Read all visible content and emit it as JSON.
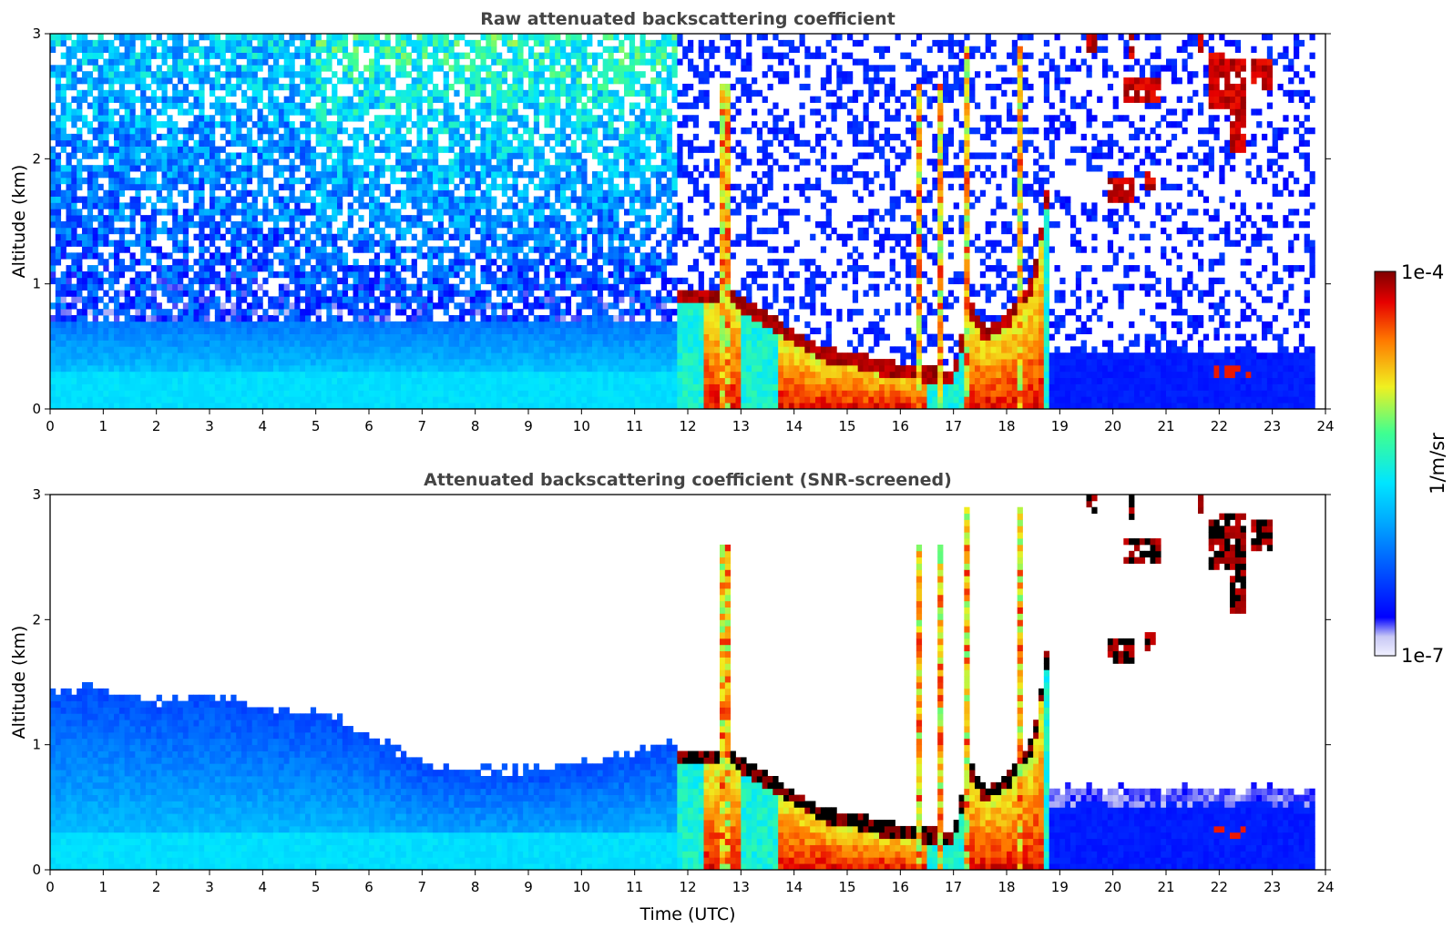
{
  "chart_data": [
    {
      "type": "heatmap",
      "title": "Raw attenuated backscattering coefficient",
      "xlabel": "",
      "ylabel": "Altitude (km)",
      "xlim": [
        0,
        24
      ],
      "ylim": [
        0,
        3
      ],
      "x_ticks": [
        "0",
        "1",
        "2",
        "3",
        "4",
        "5",
        "6",
        "7",
        "8",
        "9",
        "10",
        "11",
        "12",
        "13",
        "14",
        "15",
        "16",
        "17",
        "18",
        "19",
        "20",
        "21",
        "22",
        "23",
        "24"
      ],
      "y_ticks": [
        "0",
        "1",
        "2",
        "3"
      ],
      "screening": "none",
      "data_end_time": 23.8,
      "features": [
        {
          "kind": "boundary-layer aerosol",
          "time_range": [
            0,
            11.8
          ],
          "top_km": 0.6,
          "level": "low"
        },
        {
          "kind": "cloud layer",
          "time_range": [
            11.8,
            18.8
          ],
          "base_km": [
            0.9,
            0.3,
            0.8,
            1.8
          ],
          "level": "high"
        },
        {
          "kind": "clear sky, low aerosol",
          "time_range": [
            18.8,
            23.8
          ],
          "top_km": 0.45,
          "level": "very low"
        },
        {
          "kind": "elevated cloud patches",
          "time_range": [
            19.5,
            23.0
          ],
          "altitude_km": [
            1.6,
            3.0
          ],
          "level": "high"
        }
      ]
    },
    {
      "type": "heatmap",
      "title": "Attenuated backscattering coefficient (SNR-screened)",
      "xlabel": "Time (UTC)",
      "ylabel": "Altitude (km)",
      "xlim": [
        0,
        24
      ],
      "ylim": [
        0,
        3
      ],
      "x_ticks": [
        "0",
        "1",
        "2",
        "3",
        "4",
        "5",
        "6",
        "7",
        "8",
        "9",
        "10",
        "11",
        "12",
        "13",
        "14",
        "15",
        "16",
        "17",
        "18",
        "19",
        "20",
        "21",
        "22",
        "23",
        "24"
      ],
      "y_ticks": [
        "0",
        "1",
        "2",
        "3"
      ],
      "screening": "SNR",
      "data_end_time": 23.8,
      "features": [
        {
          "kind": "boundary-layer aerosol",
          "time_range": [
            0,
            11.8
          ],
          "top_km": [
            1.4,
            1.0,
            0.8,
            1.0
          ],
          "level": "low"
        },
        {
          "kind": "cloud layer",
          "time_range": [
            11.8,
            18.8
          ],
          "base_km": [
            0.9,
            0.3,
            0.8,
            1.8
          ],
          "level": "saturated"
        },
        {
          "kind": "clear sky, low aerosol",
          "time_range": [
            18.8,
            23.8
          ],
          "top_km": 0.65,
          "level": "very low"
        },
        {
          "kind": "elevated cloud patches",
          "time_range": [
            19.5,
            23.0
          ],
          "altitude_km": [
            1.6,
            3.0
          ],
          "level": "saturated"
        }
      ]
    }
  ],
  "colorbar": {
    "label": "1/m/sr",
    "max_label": "1e-4",
    "min_label": "1e-7",
    "scale": "log",
    "range": [
      1e-07,
      0.0001
    ],
    "colormap": "jet"
  }
}
